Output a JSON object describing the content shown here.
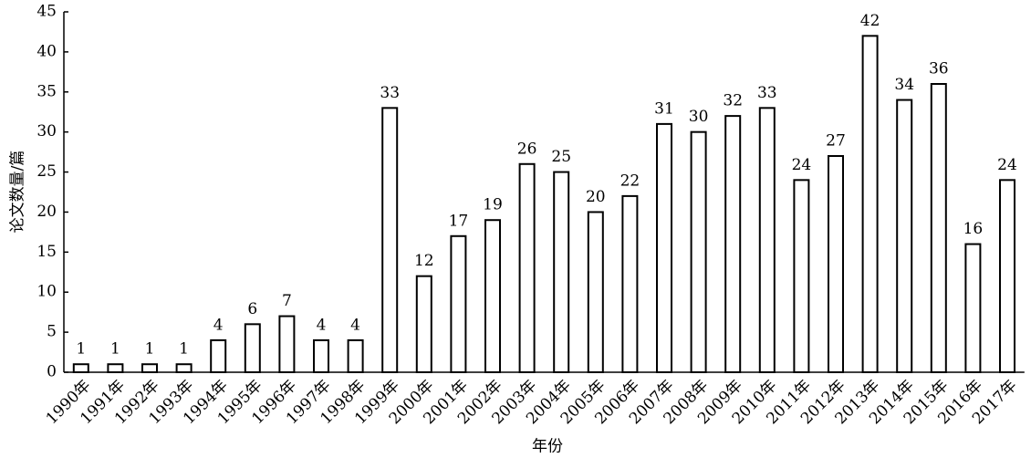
{
  "chart_data": {
    "type": "bar",
    "x_label": "年份",
    "y_label": "论文数量/篇",
    "categories": [
      "1990年",
      "1991年",
      "1992年",
      "1993年",
      "1994年",
      "1995年",
      "1996年",
      "1997年",
      "1998年",
      "1999年",
      "2000年",
      "2001年",
      "2002年",
      "2003年",
      "2004年",
      "2005年",
      "2006年",
      "2007年",
      "2008年",
      "2009年",
      "2010年",
      "2011年",
      "2012年",
      "2013年",
      "2014年",
      "2015年",
      "2016年",
      "2017年"
    ],
    "values": [
      1,
      1,
      1,
      1,
      4,
      6,
      7,
      4,
      4,
      33,
      12,
      17,
      19,
      26,
      25,
      20,
      22,
      31,
      30,
      32,
      33,
      24,
      27,
      42,
      34,
      36,
      16,
      24
    ],
    "color": "#ffffff",
    "edgecolor": "#000000",
    "ylim": [
      0,
      45
    ],
    "yticks": [
      0,
      5,
      10,
      15,
      20,
      25,
      30,
      35,
      40,
      45
    ],
    "grid": false
  }
}
